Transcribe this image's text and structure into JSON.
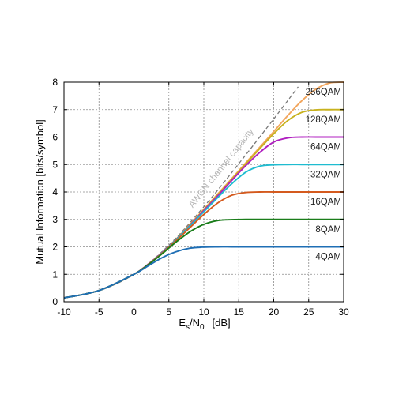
{
  "chart_data": {
    "type": "line",
    "title": "",
    "xlabel": {
      "base": "E",
      "sub1": "s",
      "slash": "/N",
      "sub2": "0",
      "unit": "[dB]"
    },
    "ylabel": "Mutual Information [bits/symbol]",
    "xlim": [
      -10,
      30
    ],
    "ylim": [
      0,
      8
    ],
    "xticks": [
      -10,
      -5,
      0,
      5,
      10,
      15,
      20,
      25,
      30
    ],
    "yticks": [
      0,
      1,
      2,
      3,
      4,
      5,
      6,
      7,
      8
    ],
    "grid": true,
    "x": [
      -10,
      -5,
      0,
      2,
      4,
      6,
      8,
      10,
      12,
      14,
      16,
      18,
      20,
      22,
      24,
      26,
      28,
      30
    ],
    "series": [
      {
        "name": "4QAM",
        "color": "#1f6fb5",
        "values": [
          0.14,
          0.41,
          1.0,
          1.3,
          1.6,
          1.82,
          1.95,
          1.99,
          2.0,
          2.0,
          2.0,
          2.0,
          2.0,
          2.0,
          2.0,
          2.0,
          2.0,
          2.0
        ]
      },
      {
        "name": "8QAM",
        "color": "#1a7d1a",
        "values": [
          0.14,
          0.41,
          1.0,
          1.34,
          1.74,
          2.17,
          2.55,
          2.82,
          2.96,
          2.99,
          3.0,
          3.0,
          3.0,
          3.0,
          3.0,
          3.0,
          3.0,
          3.0
        ]
      },
      {
        "name": "16QAM",
        "color": "#d45a1e",
        "values": [
          0.14,
          0.41,
          1.0,
          1.35,
          1.76,
          2.22,
          2.7,
          3.18,
          3.6,
          3.88,
          3.98,
          4.0,
          4.0,
          4.0,
          4.0,
          4.0,
          4.0,
          4.0
        ]
      },
      {
        "name": "32QAM",
        "color": "#1fbcd0",
        "values": [
          0.14,
          0.41,
          1.0,
          1.35,
          1.77,
          2.25,
          2.76,
          3.28,
          3.8,
          4.3,
          4.72,
          4.94,
          4.99,
          5.0,
          5.0,
          5.0,
          5.0,
          5.0
        ]
      },
      {
        "name": "64QAM",
        "color": "#b01fc0",
        "values": [
          0.14,
          0.41,
          1.0,
          1.36,
          1.78,
          2.26,
          2.78,
          3.32,
          3.86,
          4.42,
          4.96,
          5.44,
          5.82,
          5.97,
          6.0,
          6.0,
          6.0,
          6.0
        ]
      },
      {
        "name": "128QAM",
        "color": "#c8b21e",
        "values": [
          0.14,
          0.41,
          1.0,
          1.36,
          1.78,
          2.27,
          2.8,
          3.35,
          3.9,
          4.46,
          5.02,
          5.58,
          6.12,
          6.6,
          6.9,
          6.99,
          7.0,
          7.0
        ]
      },
      {
        "name": "256QAM",
        "color": "#f2a65e",
        "values": [
          0.14,
          0.41,
          1.0,
          1.36,
          1.78,
          2.27,
          2.81,
          3.37,
          3.93,
          4.49,
          5.06,
          5.63,
          6.2,
          6.78,
          7.32,
          7.74,
          7.97,
          8.0
        ]
      }
    ],
    "reference": {
      "name": "AWGN channel capacity",
      "color": "#777777",
      "style": "dashed",
      "x": [
        -10,
        -5,
        0,
        5,
        10,
        15,
        20,
        23.5
      ],
      "values": [
        0.14,
        0.41,
        1.0,
        2.06,
        3.46,
        5.03,
        6.66,
        7.83
      ]
    }
  }
}
